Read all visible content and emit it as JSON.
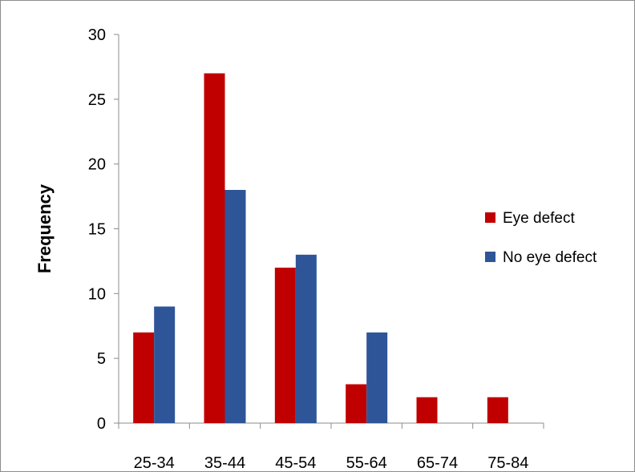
{
  "chart_data": {
    "type": "bar",
    "categories": [
      "25-34",
      "35-44",
      "45-54",
      "55-64",
      "65-74",
      "75-84"
    ],
    "series": [
      {
        "name": "Eye defect",
        "values": [
          7,
          27,
          12,
          3,
          2,
          2
        ],
        "color": "#C00000"
      },
      {
        "name": "No eye defect",
        "values": [
          9,
          18,
          13,
          7,
          0,
          0
        ],
        "color": "#2E5597"
      }
    ],
    "title": "",
    "xlabel": "",
    "ylabel": "Frequency",
    "ylim": [
      0,
      30
    ],
    "yticks": [
      0,
      5,
      10,
      15,
      20,
      25,
      30
    ],
    "grid": false,
    "legend": "right"
  }
}
